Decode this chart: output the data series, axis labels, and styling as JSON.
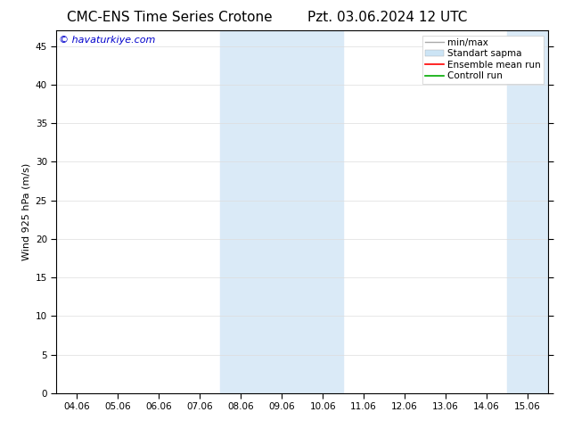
{
  "title": "CMC-ENS Time Series Crotone",
  "title_date": "Pzt. 03.06.2024 12 UTC",
  "ylabel": "Wind 925 hPa (m/s)",
  "watermark": "© havaturkiye.com",
  "ylim": [
    0,
    47
  ],
  "yticks": [
    0,
    5,
    10,
    15,
    20,
    25,
    30,
    35,
    40,
    45
  ],
  "xtick_labels": [
    "04.06",
    "05.06",
    "06.06",
    "07.06",
    "08.06",
    "09.06",
    "10.06",
    "11.06",
    "12.06",
    "13.06",
    "14.06",
    "15.06"
  ],
  "background_color": "#ffffff",
  "plot_bg_color": "#ffffff",
  "shade_color": "#daeaf7",
  "legend_labels": [
    "min/max",
    "Standart sapma",
    "Ensemble mean run",
    "Controll run"
  ],
  "legend_line_colors": [
    "#aaaaaa",
    "#c8dff0",
    "#ff0000",
    "#00aa00"
  ],
  "title_fontsize": 11,
  "label_fontsize": 8,
  "tick_fontsize": 7.5,
  "watermark_color": "#0000cc",
  "watermark_fontsize": 8,
  "legend_fontsize": 7.5
}
